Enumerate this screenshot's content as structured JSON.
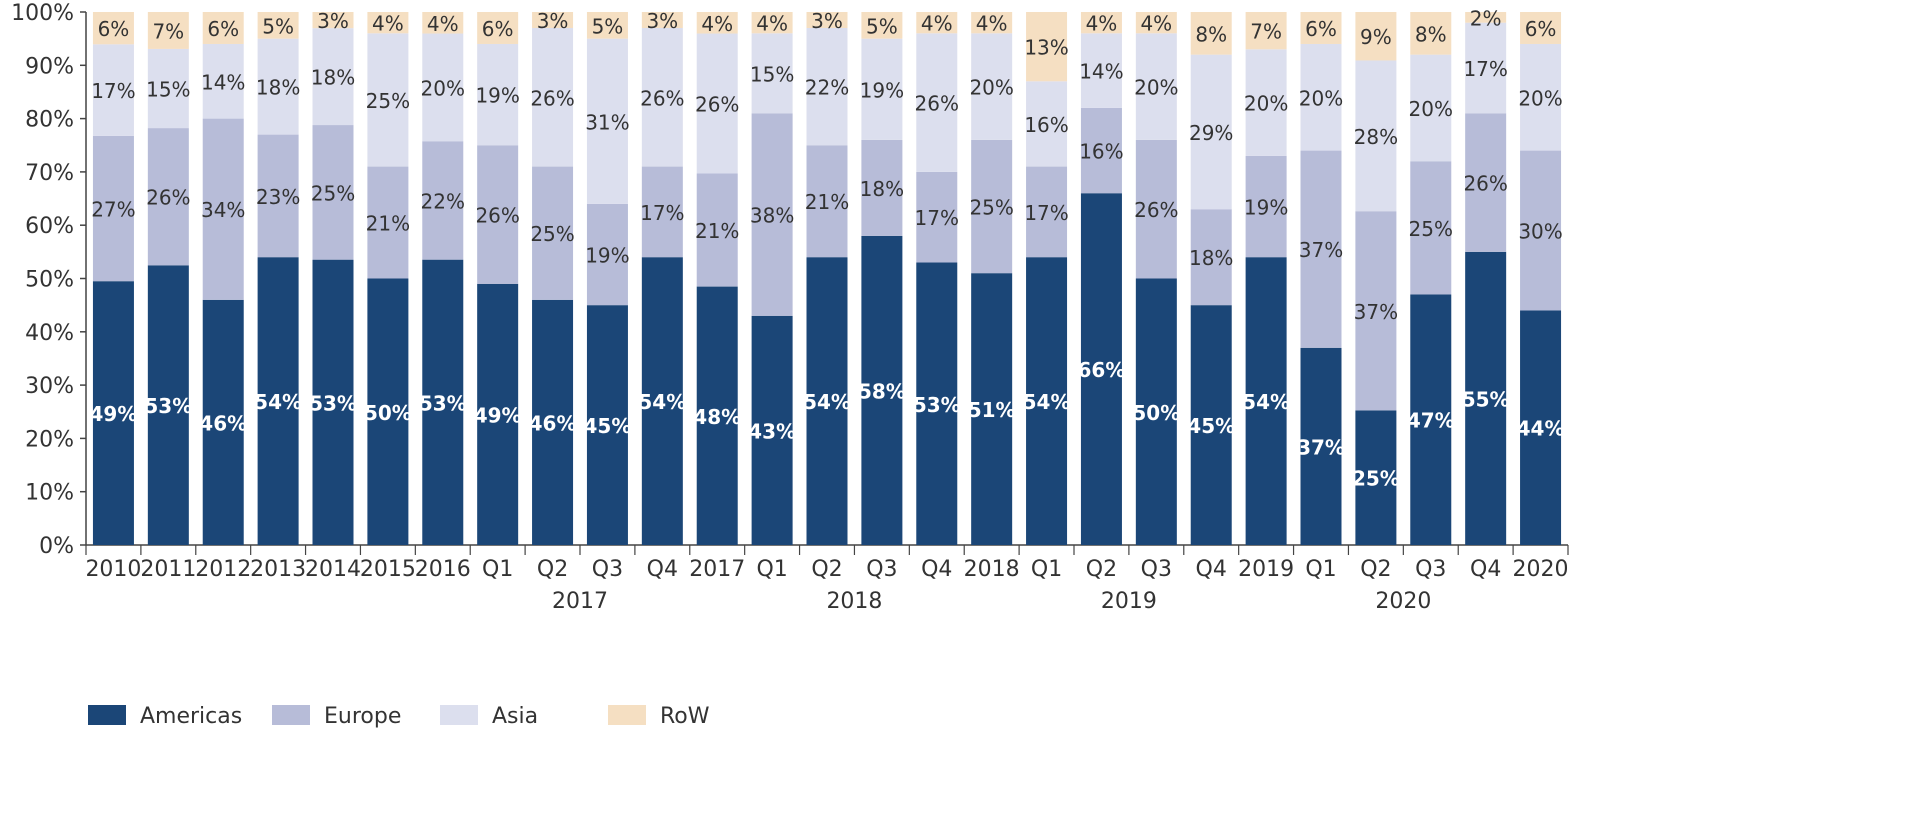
{
  "chart_data": {
    "type": "bar",
    "stacked": true,
    "percent": true,
    "categories": [
      "2010",
      "2011",
      "2012",
      "2013",
      "2014",
      "2015",
      "2016",
      "Q1",
      "Q2",
      "Q3",
      "Q4",
      "2017",
      "Q1",
      "Q2",
      "Q3",
      "Q4",
      "2018",
      "Q1",
      "Q2",
      "Q3",
      "Q4",
      "2019",
      "Q1",
      "Q2",
      "Q3",
      "Q4",
      "2020"
    ],
    "groups": [
      {
        "label": "2017",
        "from": 7,
        "to": 10
      },
      {
        "label": "2018",
        "from": 12,
        "to": 15
      },
      {
        "label": "2019",
        "from": 17,
        "to": 20
      },
      {
        "label": "2020",
        "from": 22,
        "to": 25
      }
    ],
    "series": [
      {
        "name": "Americas",
        "color": "#1b4677",
        "label_color": "#ffffff",
        "values": [
          49,
          53,
          46,
          54,
          53,
          50,
          53,
          49,
          46,
          45,
          54,
          48,
          43,
          54,
          58,
          53,
          51,
          54,
          66,
          50,
          45,
          54,
          37,
          25,
          47,
          55,
          44
        ]
      },
      {
        "name": "Europe",
        "color": "#b7bcd8",
        "label_color": "#333333",
        "values": [
          27,
          26,
          34,
          23,
          25,
          21,
          22,
          26,
          25,
          19,
          17,
          21,
          38,
          21,
          18,
          17,
          25,
          17,
          16,
          26,
          18,
          19,
          37,
          37,
          25,
          26,
          30
        ]
      },
      {
        "name": "Asia",
        "color": "#dcdfee",
        "label_color": "#333333",
        "values": [
          17,
          15,
          14,
          18,
          18,
          25,
          20,
          19,
          26,
          31,
          26,
          26,
          15,
          22,
          19,
          26,
          20,
          16,
          14,
          20,
          29,
          20,
          20,
          28,
          20,
          17,
          20
        ]
      },
      {
        "name": "RoW",
        "color": "#f5dfc2",
        "label_color": "#333333",
        "values": [
          6,
          7,
          6,
          5,
          3,
          4,
          4,
          6,
          3,
          5,
          3,
          4,
          4,
          3,
          5,
          4,
          4,
          13,
          4,
          4,
          8,
          7,
          6,
          9,
          8,
          2,
          6
        ]
      }
    ],
    "yticks": [
      "0%",
      "10%",
      "20%",
      "30%",
      "40%",
      "50%",
      "60%",
      "70%",
      "80%",
      "90%",
      "100%"
    ],
    "ylim": [
      0,
      100
    ],
    "grid": false,
    "legend": "bottom-left"
  }
}
